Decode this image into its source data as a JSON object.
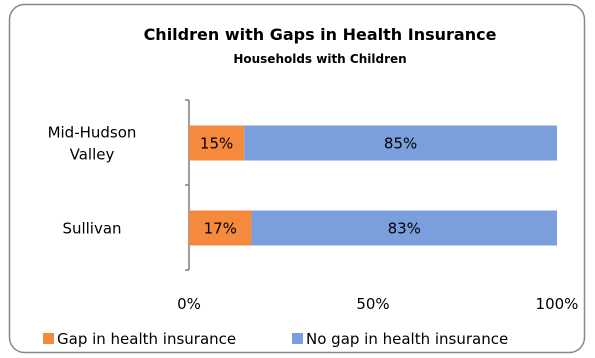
{
  "chart_data": {
    "type": "bar",
    "orientation": "horizontal",
    "stacked": true,
    "title": "Children with Gaps in Health Insurance",
    "subtitle": "Households with Children",
    "categories": [
      "Mid-Hudson Valley",
      "Sullivan"
    ],
    "category_lines": [
      [
        "Mid-Hudson",
        "Valley"
      ],
      [
        "Sullivan"
      ]
    ],
    "series": [
      {
        "name": "Gap in health insurance",
        "values": [
          15,
          17
        ],
        "labels": [
          "15%",
          "17%"
        ],
        "color": "#f58a3c"
      },
      {
        "name": "No gap in health insurance",
        "values": [
          85,
          83
        ],
        "labels": [
          "85%",
          "83%"
        ],
        "color": "#7b9fdc"
      }
    ],
    "xlim": [
      0,
      100
    ],
    "xticks": [
      0,
      50,
      100
    ],
    "xtick_labels": [
      "0%",
      "50%",
      "100%"
    ],
    "grid": false,
    "legend_position": "bottom",
    "border_color": "#888888"
  }
}
